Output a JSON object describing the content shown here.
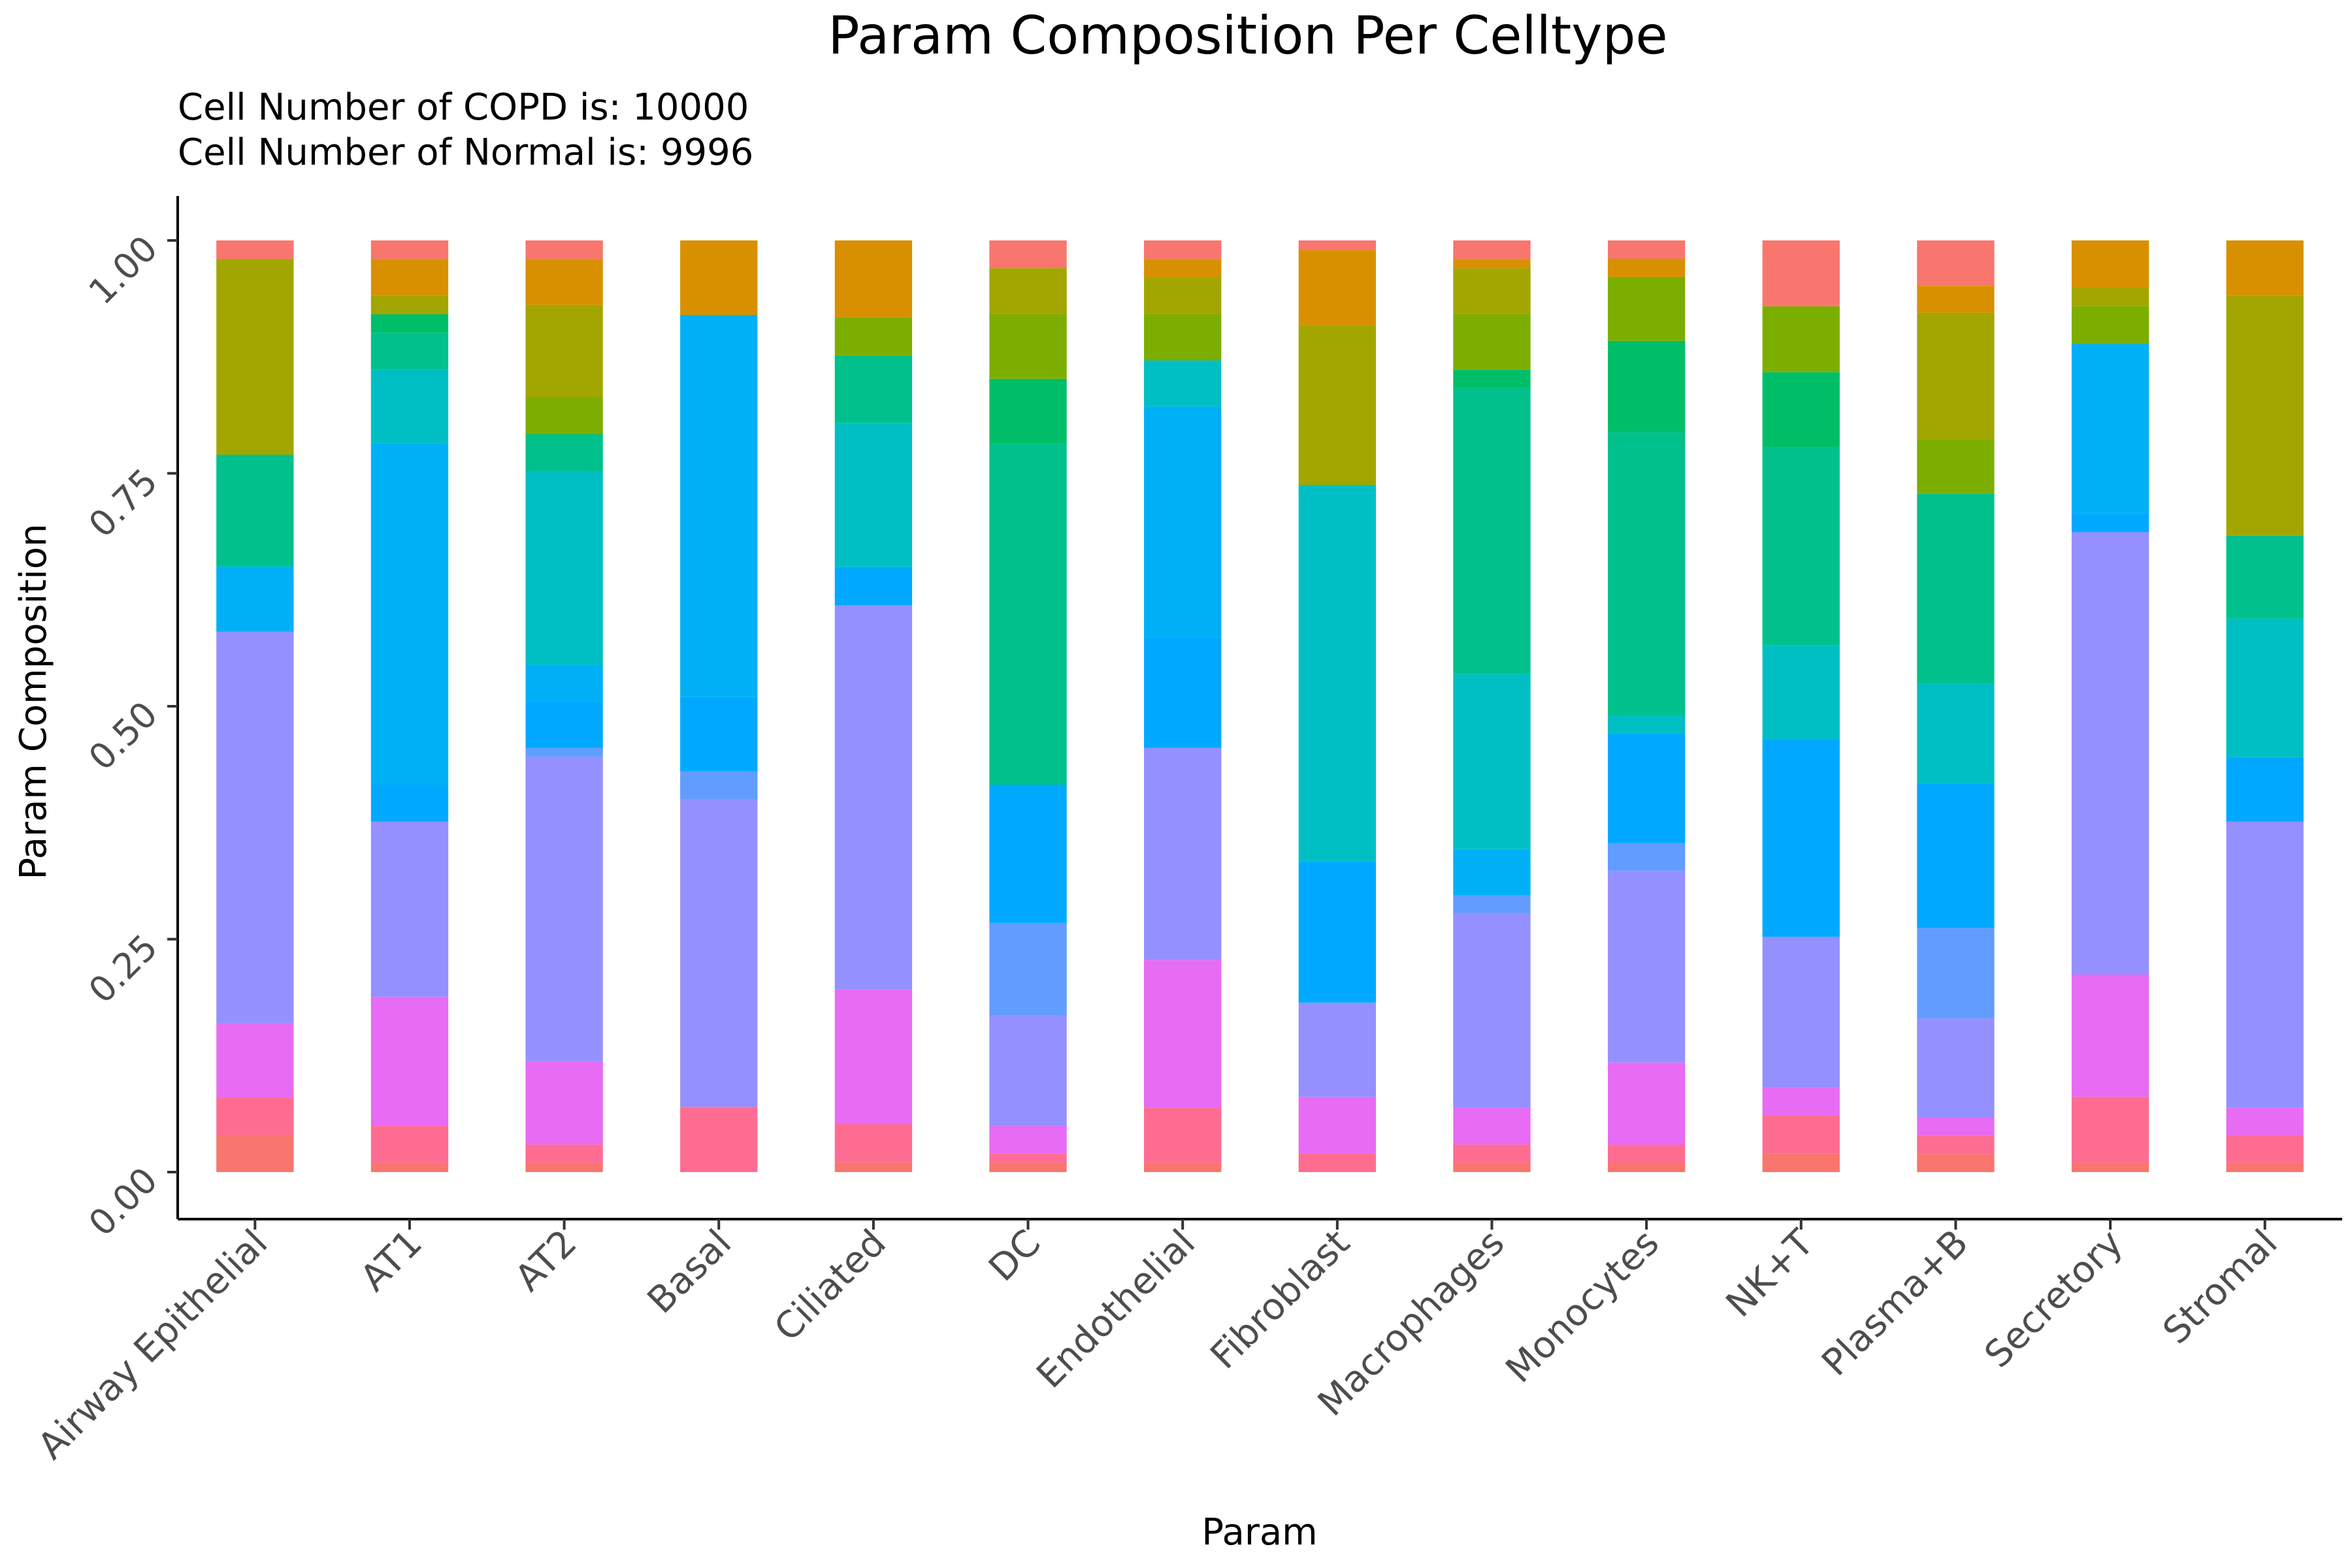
{
  "chart_data": {
    "type": "bar",
    "stacked": true,
    "title": "Param Composition Per Celltype",
    "subtitle_lines": [
      "Cell Number of COPD is: 10000",
      "Cell Number of Normal is: 9996"
    ],
    "xlabel": "Param",
    "ylabel": "Param Composition",
    "ylim": [
      0,
      1
    ],
    "yticks": [
      "0.00",
      "0.25",
      "0.50",
      "0.75",
      "1.00"
    ],
    "grid": false,
    "legend": "none",
    "categories": [
      "Airway Epithelial",
      "AT1",
      "AT2",
      "Basal",
      "Ciliated",
      "DC",
      "Endothelial",
      "Fibroblast",
      "Macrophages",
      "Monocytes",
      "NK+T",
      "Plasma+B",
      "Secretory",
      "Stromal"
    ],
    "bands": [
      {
        "color": "#F8766D",
        "values": [
          0.04,
          0.01,
          0.01,
          0.0,
          0.01,
          0.01,
          0.01,
          0.0,
          0.01,
          0.01,
          0.02,
          0.02,
          0.01,
          0.01
        ]
      },
      {
        "color": "#FF6C91",
        "values": [
          0.04,
          0.04,
          0.02,
          0.07,
          0.04,
          0.01,
          0.06,
          0.02,
          0.02,
          0.02,
          0.04,
          0.02,
          0.07,
          0.03
        ]
      },
      {
        "color": "#E76BF3",
        "values": [
          0.08,
          0.14,
          0.09,
          0.0,
          0.14,
          0.03,
          0.16,
          0.06,
          0.04,
          0.09,
          0.03,
          0.02,
          0.13,
          0.03
        ]
      },
      {
        "color": "#9590FF",
        "values": [
          0.42,
          0.19,
          0.33,
          0.33,
          0.4,
          0.12,
          0.23,
          0.1,
          0.21,
          0.21,
          0.16,
          0.11,
          0.47,
          0.31
        ]
      },
      {
        "color": "#619CFF",
        "values": [
          0.0,
          0.0,
          0.01,
          0.03,
          0.0,
          0.1,
          0.0,
          0.0,
          0.02,
          0.03,
          0.0,
          0.1,
          0.0,
          0.0
        ]
      },
      {
        "color": "#00A9FF",
        "values": [
          0.0,
          0.04,
          0.05,
          0.08,
          0.04,
          0.15,
          0.12,
          0.15,
          0.0,
          0.12,
          0.21,
          0.16,
          0.02,
          0.07
        ]
      },
      {
        "color": "#00B0F6",
        "values": [
          0.07,
          0.37,
          0.04,
          0.41,
          0.0,
          0.0,
          0.25,
          0.0,
          0.05,
          0.0,
          0.0,
          0.0,
          0.18,
          0.0
        ]
      },
      {
        "color": "#00BFC4",
        "values": [
          0.0,
          0.08,
          0.21,
          0.0,
          0.15,
          0.0,
          0.05,
          0.4,
          0.19,
          0.02,
          0.1,
          0.11,
          0.0,
          0.15
        ]
      },
      {
        "color": "#00C08B",
        "values": [
          0.12,
          0.04,
          0.04,
          0.0,
          0.07,
          0.37,
          0.0,
          0.0,
          0.31,
          0.31,
          0.21,
          0.21,
          0.0,
          0.09
        ]
      },
      {
        "color": "#00BE67",
        "values": [
          0.0,
          0.02,
          0.0,
          0.0,
          0.0,
          0.07,
          0.0,
          0.0,
          0.02,
          0.1,
          0.08,
          0.0,
          0.0,
          0.0
        ]
      },
      {
        "color": "#7CAE00",
        "values": [
          0.0,
          0.0,
          0.04,
          0.0,
          0.04,
          0.07,
          0.05,
          0.0,
          0.06,
          0.07,
          0.07,
          0.06,
          0.04,
          0.0
        ]
      },
      {
        "color": "#A3A500",
        "values": [
          0.21,
          0.02,
          0.1,
          0.0,
          0.0,
          0.05,
          0.04,
          0.17,
          0.05,
          0.0,
          0.0,
          0.14,
          0.02,
          0.26
        ]
      },
      {
        "color": "#D89000",
        "values": [
          0.0,
          0.04,
          0.05,
          0.08,
          0.08,
          0.0,
          0.02,
          0.08,
          0.01,
          0.02,
          0.0,
          0.03,
          0.05,
          0.06
        ]
      },
      {
        "color": "#F8766D",
        "values": [
          0.02,
          0.02,
          0.02,
          0.0,
          0.0,
          0.03,
          0.02,
          0.01,
          0.02,
          0.02,
          0.07,
          0.05,
          0.0,
          0.0
        ]
      }
    ]
  }
}
